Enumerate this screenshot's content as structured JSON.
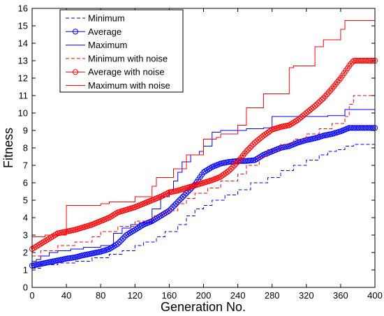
{
  "chart_data": {
    "type": "line",
    "title": "",
    "xlabel": "Generation No.",
    "ylabel": "Fitness",
    "xlim": [
      0,
      400
    ],
    "ylim": [
      0,
      16
    ],
    "xticks": [
      0,
      40,
      80,
      120,
      160,
      200,
      240,
      280,
      320,
      360,
      400
    ],
    "yticks": [
      0,
      1,
      2,
      3,
      4,
      5,
      6,
      7,
      8,
      9,
      10,
      11,
      12,
      13,
      14,
      15,
      16
    ],
    "grid": false,
    "legend_position": "top-left",
    "series": [
      {
        "name": "Minimum",
        "color": "#0000ff",
        "dash": "dashed",
        "marker": "none",
        "style": "step",
        "points": [
          [
            0,
            1.1
          ],
          [
            10,
            1.3
          ],
          [
            30,
            1.4
          ],
          [
            50,
            1.5
          ],
          [
            70,
            1.7
          ],
          [
            90,
            1.9
          ],
          [
            105,
            2.1
          ],
          [
            120,
            2.4
          ],
          [
            130,
            2.6
          ],
          [
            145,
            2.9
          ],
          [
            155,
            3.2
          ],
          [
            170,
            3.6
          ],
          [
            180,
            4.1
          ],
          [
            190,
            4.5
          ],
          [
            200,
            4.7
          ],
          [
            210,
            5.0
          ],
          [
            225,
            5.3
          ],
          [
            240,
            5.6
          ],
          [
            255,
            6.0
          ],
          [
            275,
            6.3
          ],
          [
            290,
            6.7
          ],
          [
            305,
            7.0
          ],
          [
            320,
            7.3
          ],
          [
            335,
            7.6
          ],
          [
            345,
            7.8
          ],
          [
            355,
            7.9
          ],
          [
            365,
            8.1
          ],
          [
            375,
            8.2
          ],
          [
            400,
            8.2
          ]
        ]
      },
      {
        "name": "Average",
        "color": "#0000ff",
        "dash": "solid",
        "marker": "circle",
        "style": "smooth",
        "points": [
          [
            0,
            1.25
          ],
          [
            10,
            1.35
          ],
          [
            20,
            1.45
          ],
          [
            30,
            1.55
          ],
          [
            40,
            1.65
          ],
          [
            50,
            1.72
          ],
          [
            60,
            1.85
          ],
          [
            70,
            1.95
          ],
          [
            80,
            2.05
          ],
          [
            90,
            2.2
          ],
          [
            100,
            2.5
          ],
          [
            110,
            3.0
          ],
          [
            120,
            3.3
          ],
          [
            130,
            3.6
          ],
          [
            140,
            3.8
          ],
          [
            150,
            4.1
          ],
          [
            160,
            4.4
          ],
          [
            170,
            4.9
          ],
          [
            180,
            5.4
          ],
          [
            190,
            5.9
          ],
          [
            200,
            6.6
          ],
          [
            210,
            6.9
          ],
          [
            220,
            7.1
          ],
          [
            230,
            7.2
          ],
          [
            240,
            7.25
          ],
          [
            250,
            7.25
          ],
          [
            260,
            7.3
          ],
          [
            270,
            7.6
          ],
          [
            280,
            7.8
          ],
          [
            290,
            8.0
          ],
          [
            300,
            8.1
          ],
          [
            310,
            8.3
          ],
          [
            320,
            8.45
          ],
          [
            330,
            8.55
          ],
          [
            340,
            8.7
          ],
          [
            350,
            8.8
          ],
          [
            360,
            8.95
          ],
          [
            370,
            9.15
          ],
          [
            380,
            9.15
          ],
          [
            390,
            9.15
          ],
          [
            400,
            9.15
          ]
        ]
      },
      {
        "name": "Maximum",
        "color": "#0000ff",
        "dash": "solid",
        "marker": "none",
        "style": "step",
        "points": [
          [
            0,
            1.5
          ],
          [
            5,
            1.6
          ],
          [
            10,
            1.8
          ],
          [
            20,
            2.0
          ],
          [
            30,
            2.1
          ],
          [
            45,
            2.2
          ],
          [
            60,
            2.3
          ],
          [
            80,
            2.4
          ],
          [
            95,
            3.1
          ],
          [
            105,
            3.4
          ],
          [
            115,
            3.6
          ],
          [
            125,
            3.7
          ],
          [
            140,
            4.5
          ],
          [
            150,
            5.2
          ],
          [
            160,
            5.6
          ],
          [
            165,
            6.1
          ],
          [
            170,
            6.6
          ],
          [
            175,
            7.2
          ],
          [
            185,
            7.6
          ],
          [
            195,
            7.8
          ],
          [
            200,
            8.1
          ],
          [
            210,
            8.9
          ],
          [
            220,
            9.0
          ],
          [
            250,
            9.1
          ],
          [
            270,
            9.15
          ],
          [
            280,
            9.8
          ],
          [
            305,
            9.8
          ],
          [
            320,
            9.8
          ],
          [
            345,
            9.85
          ],
          [
            365,
            10.2
          ],
          [
            400,
            10.2
          ]
        ]
      },
      {
        "name": "Minimum with noise",
        "color": "#ff0000",
        "dash": "dashed",
        "marker": "none",
        "style": "step",
        "points": [
          [
            0,
            1.8
          ],
          [
            10,
            2.1
          ],
          [
            30,
            2.4
          ],
          [
            50,
            2.6
          ],
          [
            70,
            2.9
          ],
          [
            80,
            3.2
          ],
          [
            100,
            3.5
          ],
          [
            120,
            3.8
          ],
          [
            140,
            4.1
          ],
          [
            155,
            4.4
          ],
          [
            170,
            4.8
          ],
          [
            180,
            5.1
          ],
          [
            190,
            5.4
          ],
          [
            205,
            5.7
          ],
          [
            220,
            6.1
          ],
          [
            240,
            6.5
          ],
          [
            250,
            7.0
          ],
          [
            265,
            7.5
          ],
          [
            275,
            7.9
          ],
          [
            290,
            8.2
          ],
          [
            305,
            8.5
          ],
          [
            320,
            8.8
          ],
          [
            335,
            9.1
          ],
          [
            350,
            9.4
          ],
          [
            365,
            9.8
          ],
          [
            370,
            10.5
          ],
          [
            375,
            11.0
          ],
          [
            400,
            11.0
          ]
        ]
      },
      {
        "name": "Average with noise",
        "color": "#ff0000",
        "dash": "solid",
        "marker": "circle",
        "style": "smooth",
        "points": [
          [
            0,
            2.2
          ],
          [
            10,
            2.5
          ],
          [
            20,
            2.8
          ],
          [
            30,
            3.1
          ],
          [
            40,
            3.2
          ],
          [
            50,
            3.3
          ],
          [
            60,
            3.45
          ],
          [
            70,
            3.6
          ],
          [
            80,
            3.8
          ],
          [
            90,
            4.0
          ],
          [
            100,
            4.3
          ],
          [
            110,
            4.45
          ],
          [
            120,
            4.6
          ],
          [
            130,
            4.8
          ],
          [
            140,
            5.0
          ],
          [
            150,
            5.2
          ],
          [
            160,
            5.45
          ],
          [
            170,
            5.55
          ],
          [
            180,
            5.7
          ],
          [
            190,
            5.85
          ],
          [
            200,
            6.0
          ],
          [
            210,
            6.15
          ],
          [
            220,
            6.35
          ],
          [
            230,
            6.7
          ],
          [
            240,
            7.2
          ],
          [
            250,
            7.8
          ],
          [
            260,
            8.3
          ],
          [
            270,
            8.7
          ],
          [
            280,
            9.05
          ],
          [
            290,
            9.2
          ],
          [
            300,
            9.3
          ],
          [
            310,
            9.6
          ],
          [
            320,
            10.0
          ],
          [
            330,
            10.4
          ],
          [
            340,
            10.85
          ],
          [
            350,
            11.4
          ],
          [
            360,
            12.0
          ],
          [
            370,
            12.7
          ],
          [
            375,
            13.0
          ],
          [
            400,
            13.0
          ]
        ]
      },
      {
        "name": "Maximum with noise",
        "color": "#ff0000",
        "dash": "solid",
        "marker": "none",
        "style": "step",
        "points": [
          [
            0,
            2.9
          ],
          [
            15,
            3.0
          ],
          [
            40,
            4.7
          ],
          [
            80,
            4.8
          ],
          [
            90,
            4.9
          ],
          [
            120,
            5.2
          ],
          [
            140,
            5.8
          ],
          [
            145,
            6.3
          ],
          [
            165,
            6.8
          ],
          [
            180,
            7.6
          ],
          [
            200,
            8.5
          ],
          [
            215,
            8.6
          ],
          [
            220,
            8.8
          ],
          [
            240,
            9.3
          ],
          [
            250,
            10.3
          ],
          [
            270,
            11.1
          ],
          [
            300,
            12.6
          ],
          [
            305,
            12.7
          ],
          [
            330,
            13.8
          ],
          [
            340,
            14.2
          ],
          [
            360,
            14.8
          ],
          [
            365,
            15.3
          ],
          [
            400,
            15.3
          ]
        ]
      }
    ]
  }
}
